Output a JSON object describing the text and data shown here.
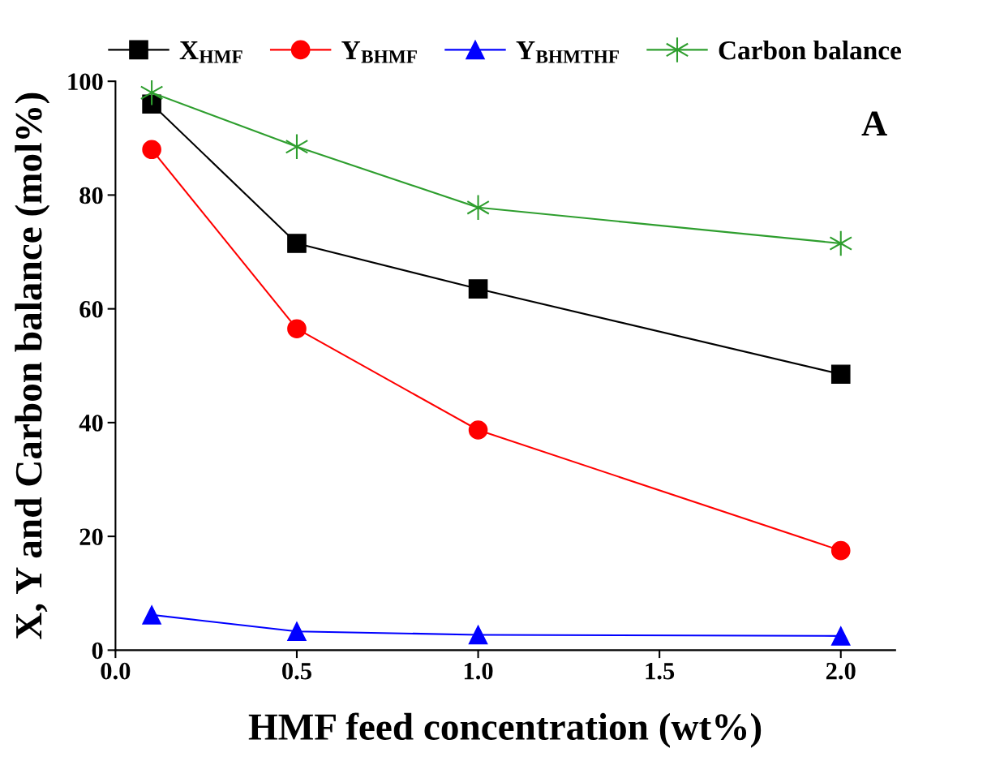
{
  "chart_data": {
    "type": "line",
    "xlabel": "HMF feed concentration (wt%)",
    "ylabel": "X, Y and Carbon balance (mol%)",
    "x": [
      0.1,
      0.5,
      1.0,
      2.0
    ],
    "series": [
      {
        "name": "X$_{HMF}$",
        "color": "#000000",
        "marker": "square",
        "values": [
          96,
          71.5,
          63.5,
          48.5
        ]
      },
      {
        "name": "Y$_{BHMF}$",
        "color": "#ff0000",
        "marker": "circle",
        "values": [
          88,
          56.5,
          38.7,
          17.5
        ]
      },
      {
        "name": "Y$_{BHMTHF}$",
        "color": "#0000ff",
        "marker": "triangle",
        "values": [
          6.2,
          3.3,
          2.7,
          2.5
        ]
      },
      {
        "name": "Carbon balance",
        "color": "#2e9e2e",
        "marker": "cross",
        "values": [
          98,
          88.5,
          77.8,
          71.5
        ]
      }
    ],
    "xlim": [
      0,
      2.15
    ],
    "xticks": [
      {
        "value": 0,
        "label": "0.0"
      },
      {
        "value": 0.5,
        "label": "0.5"
      },
      {
        "value": 1,
        "label": "1.0"
      },
      {
        "value": 1.5,
        "label": "1.5"
      },
      {
        "value": 2,
        "label": "2.0"
      }
    ],
    "ylim": [
      0,
      100
    ],
    "yticks": [
      0,
      20,
      40,
      60,
      80,
      100
    ],
    "annotations": [
      "A"
    ],
    "legend": "top",
    "grid": false,
    "line_style": "solid"
  }
}
